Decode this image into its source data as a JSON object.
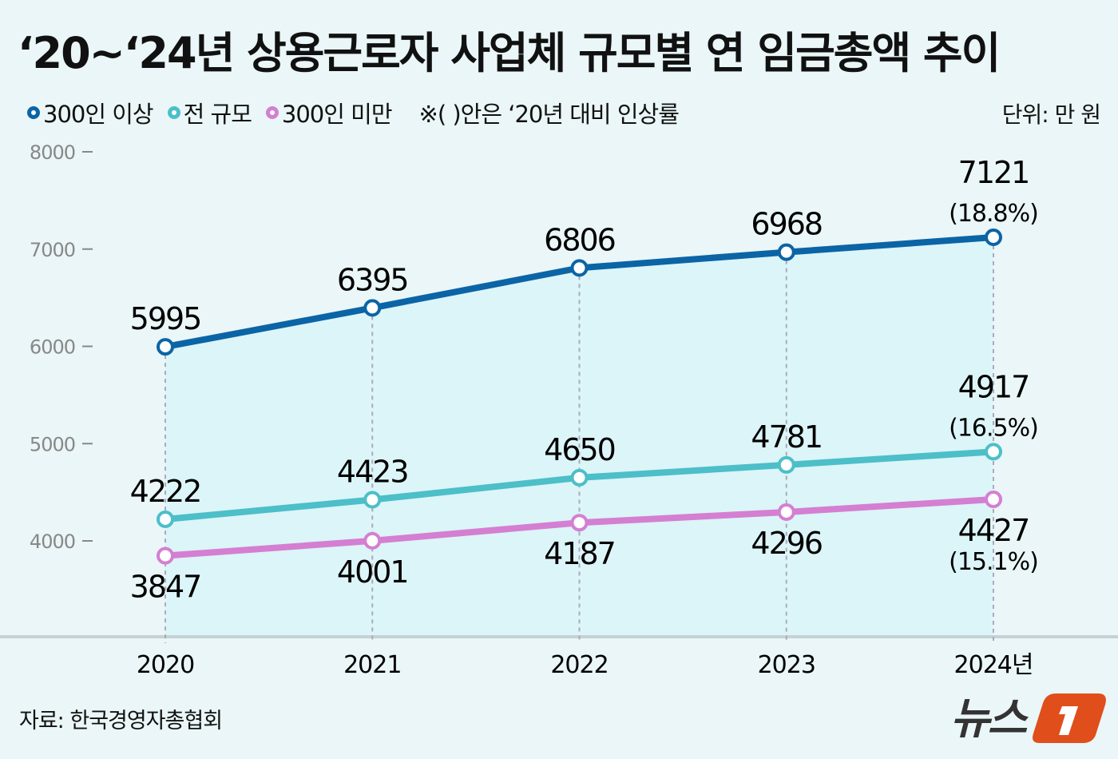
{
  "title": "‘20~‘24년 상용근로자 사업체 규모별 연 임금총액 추이",
  "legend_note": "※( )안은 ‘20년 대비 인상률",
  "unit": "단위: 만 원",
  "source": "자료: 한국경영자총협회",
  "logo_text": "뉴스1",
  "colors": {
    "background": "#eaf6f7",
    "area_fill": "#dcf5f8",
    "series_300_plus": "#0b64a6",
    "series_all": "#4cbfc8",
    "series_under_300": "#d47fd2"
  },
  "chart_data": {
    "type": "line",
    "x": [
      "2020",
      "2021",
      "2022",
      "2023",
      "2024"
    ],
    "x_tick_labels": [
      "2020",
      "2021",
      "2022",
      "2023",
      "2024년"
    ],
    "y_ticks": [
      4000,
      5000,
      6000,
      7000,
      8000
    ],
    "ylim": [
      3000,
      8000
    ],
    "grid": false,
    "legend_position": "top-left",
    "series": [
      {
        "name": "300인 이상",
        "color": "#0b64a6",
        "values": [
          5995,
          6395,
          6806,
          6968,
          7121
        ],
        "labels": [
          "5995",
          "6395",
          "6806",
          "6968",
          "7121"
        ],
        "increase": "(18.8%)",
        "label_side": "above"
      },
      {
        "name": "전 규모",
        "color": "#4cbfc8",
        "values": [
          4222,
          4423,
          4650,
          4781,
          4917
        ],
        "labels": [
          "4222",
          "4423",
          "4650",
          "4781",
          "4917"
        ],
        "increase": "(16.5%)",
        "label_side": "above"
      },
      {
        "name": "300인 미만",
        "color": "#d47fd2",
        "values": [
          3847,
          4001,
          4187,
          4296,
          4427
        ],
        "labels": [
          "3847",
          "4001",
          "4187",
          "4296",
          "4427"
        ],
        "increase": "(15.1%)",
        "label_side": "below"
      }
    ]
  }
}
